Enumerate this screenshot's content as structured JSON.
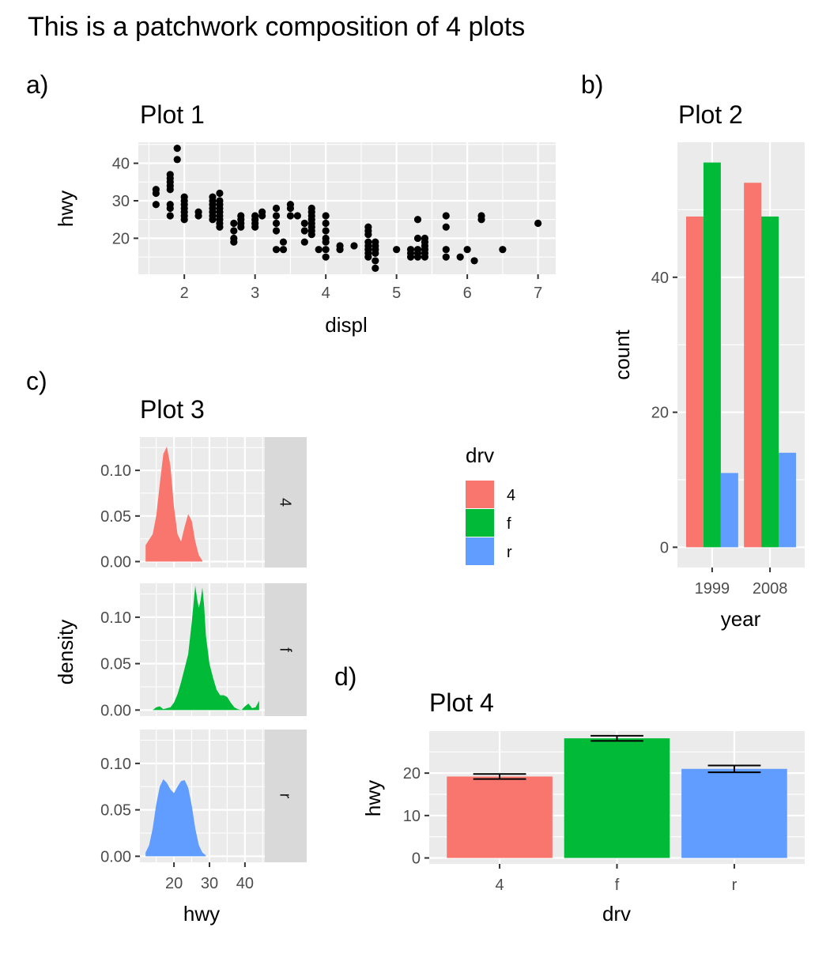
{
  "title": "This is a patchwork composition of 4 plots",
  "colors": {
    "4": "#F8766D",
    "f": "#00BA38",
    "r": "#619CFF",
    "panel_bg": "#EBEBEB",
    "strip_bg": "#D9D9D9"
  },
  "legend": {
    "title": "drv",
    "items": [
      "4",
      "f",
      "r"
    ]
  },
  "chart_data": [
    {
      "tag": "a)",
      "title": "Plot 1",
      "type": "scatter",
      "xlabel": "displ",
      "ylabel": "hwy",
      "xlim": [
        1.35,
        7.25
      ],
      "ylim": [
        10.4,
        45.6
      ],
      "xticks": [
        2,
        3,
        4,
        5,
        6,
        7
      ],
      "yticks": [
        20,
        30,
        40
      ],
      "points": [
        [
          1.6,
          33
        ],
        [
          1.6,
          32
        ],
        [
          1.6,
          29
        ],
        [
          1.8,
          29
        ],
        [
          1.8,
          26
        ],
        [
          1.8,
          28
        ],
        [
          1.8,
          33
        ],
        [
          1.8,
          34
        ],
        [
          1.8,
          36
        ],
        [
          1.8,
          37
        ],
        [
          1.8,
          35
        ],
        [
          1.9,
          44
        ],
        [
          1.9,
          41
        ],
        [
          2.0,
          31
        ],
        [
          2.0,
          30
        ],
        [
          2.0,
          29
        ],
        [
          2.0,
          28
        ],
        [
          2.0,
          27
        ],
        [
          2.0,
          26
        ],
        [
          2.0,
          25
        ],
        [
          2.2,
          27
        ],
        [
          2.2,
          26
        ],
        [
          2.4,
          31
        ],
        [
          2.4,
          30
        ],
        [
          2.4,
          29
        ],
        [
          2.4,
          28
        ],
        [
          2.4,
          27
        ],
        [
          2.4,
          26
        ],
        [
          2.4,
          25
        ],
        [
          2.5,
          32
        ],
        [
          2.5,
          30
        ],
        [
          2.5,
          29
        ],
        [
          2.5,
          28
        ],
        [
          2.5,
          27
        ],
        [
          2.5,
          26
        ],
        [
          2.5,
          25
        ],
        [
          2.5,
          24
        ],
        [
          2.5,
          23
        ],
        [
          2.7,
          24
        ],
        [
          2.7,
          22
        ],
        [
          2.7,
          20
        ],
        [
          2.7,
          19
        ],
        [
          2.8,
          26
        ],
        [
          2.8,
          25
        ],
        [
          2.8,
          24
        ],
        [
          2.8,
          23
        ],
        [
          3.0,
          26
        ],
        [
          3.0,
          25
        ],
        [
          3.0,
          24
        ],
        [
          3.0,
          23
        ],
        [
          3.1,
          27
        ],
        [
          3.1,
          26
        ],
        [
          3.3,
          28
        ],
        [
          3.3,
          26
        ],
        [
          3.3,
          24
        ],
        [
          3.3,
          22
        ],
        [
          3.3,
          17
        ],
        [
          3.4,
          19
        ],
        [
          3.4,
          17
        ],
        [
          3.5,
          29
        ],
        [
          3.5,
          28
        ],
        [
          3.5,
          26
        ],
        [
          3.6,
          26
        ],
        [
          3.7,
          24
        ],
        [
          3.7,
          22
        ],
        [
          3.7,
          19
        ],
        [
          3.8,
          28
        ],
        [
          3.8,
          27
        ],
        [
          3.8,
          26
        ],
        [
          3.8,
          25
        ],
        [
          3.8,
          24
        ],
        [
          3.8,
          23
        ],
        [
          3.8,
          22
        ],
        [
          3.8,
          21
        ],
        [
          3.9,
          17
        ],
        [
          4.0,
          26
        ],
        [
          4.0,
          24
        ],
        [
          4.0,
          22
        ],
        [
          4.0,
          20
        ],
        [
          4.0,
          19
        ],
        [
          4.0,
          17
        ],
        [
          4.0,
          15
        ],
        [
          4.2,
          18
        ],
        [
          4.2,
          17
        ],
        [
          4.4,
          18
        ],
        [
          4.6,
          23
        ],
        [
          4.6,
          22
        ],
        [
          4.6,
          21
        ],
        [
          4.6,
          19
        ],
        [
          4.6,
          18
        ],
        [
          4.6,
          17
        ],
        [
          4.6,
          16
        ],
        [
          4.6,
          15
        ],
        [
          4.7,
          19
        ],
        [
          4.7,
          18
        ],
        [
          4.7,
          17
        ],
        [
          4.7,
          16
        ],
        [
          4.7,
          14
        ],
        [
          4.7,
          12
        ],
        [
          5.0,
          17
        ],
        [
          5.2,
          17
        ],
        [
          5.2,
          16
        ],
        [
          5.2,
          15
        ],
        [
          5.3,
          25
        ],
        [
          5.3,
          20
        ],
        [
          5.3,
          17
        ],
        [
          5.3,
          16
        ],
        [
          5.3,
          15
        ],
        [
          5.4,
          20
        ],
        [
          5.4,
          19
        ],
        [
          5.4,
          18
        ],
        [
          5.4,
          17
        ],
        [
          5.4,
          16
        ],
        [
          5.4,
          15
        ],
        [
          5.7,
          26
        ],
        [
          5.7,
          23
        ],
        [
          5.7,
          17
        ],
        [
          5.7,
          15
        ],
        [
          5.9,
          15
        ],
        [
          6.0,
          17
        ],
        [
          6.1,
          14
        ],
        [
          6.2,
          26
        ],
        [
          6.2,
          25
        ],
        [
          6.5,
          17
        ],
        [
          7.0,
          24
        ]
      ]
    },
    {
      "tag": "b)",
      "title": "Plot 2",
      "type": "bar",
      "xlabel": "year",
      "ylabel": "count",
      "categories": [
        "1999",
        "2008"
      ],
      "ylim": [
        -3.0,
        60.0
      ],
      "yticks": [
        0,
        20,
        40
      ],
      "series": [
        {
          "name": "4",
          "values": [
            49,
            54
          ]
        },
        {
          "name": "f",
          "values": [
            57,
            49
          ]
        },
        {
          "name": "r",
          "values": [
            11,
            14
          ]
        }
      ]
    },
    {
      "tag": "c)",
      "title": "Plot 3",
      "type": "area",
      "xlabel": "hwy",
      "ylabel": "density",
      "xlim": [
        10.4,
        45.6
      ],
      "ylim": [
        -0.0065,
        0.1365
      ],
      "xticks": [
        20,
        30,
        40
      ],
      "yticks": [
        0.0,
        0.05,
        0.1
      ],
      "ytick_labels": [
        "0.00",
        "0.05",
        "0.10"
      ],
      "facets": [
        {
          "strip": "4",
          "x": [
            12,
            13,
            14,
            15,
            16,
            17,
            18,
            19,
            20,
            21,
            22,
            23,
            24,
            25,
            26,
            27,
            28
          ],
          "y": [
            0.018,
            0.024,
            0.03,
            0.05,
            0.085,
            0.118,
            0.126,
            0.105,
            0.06,
            0.03,
            0.022,
            0.038,
            0.052,
            0.045,
            0.022,
            0.007,
            0.001
          ]
        },
        {
          "strip": "f",
          "x": [
            14,
            15,
            16,
            17,
            18,
            19,
            20,
            21,
            22,
            23,
            24,
            25,
            26,
            26.5,
            27,
            27.5,
            28,
            28.5,
            29,
            30,
            31,
            32,
            33,
            34,
            35,
            36,
            37,
            38,
            39,
            40,
            41,
            42,
            43,
            44
          ],
          "y": [
            0.0,
            0.003,
            0.004,
            0.001,
            0.002,
            0.003,
            0.008,
            0.017,
            0.03,
            0.045,
            0.06,
            0.094,
            0.134,
            0.12,
            0.11,
            0.118,
            0.132,
            0.112,
            0.08,
            0.05,
            0.035,
            0.022,
            0.016,
            0.016,
            0.014,
            0.008,
            0.003,
            0.001,
            0.0,
            0.004,
            0.007,
            0.002,
            0.003,
            0.01
          ]
        },
        {
          "strip": "r",
          "x": [
            12,
            13,
            14,
            15,
            16,
            17,
            18,
            19,
            20,
            21,
            22,
            23,
            24,
            25,
            26,
            27,
            28,
            29
          ],
          "y": [
            0.004,
            0.012,
            0.03,
            0.056,
            0.075,
            0.083,
            0.079,
            0.072,
            0.068,
            0.075,
            0.081,
            0.082,
            0.074,
            0.055,
            0.03,
            0.012,
            0.004,
            0.001
          ]
        }
      ]
    },
    {
      "tag": "d)",
      "title": "Plot 4",
      "type": "bar",
      "xlabel": "drv",
      "ylabel": "hwy",
      "categories": [
        "4",
        "f",
        "r"
      ],
      "values": [
        19.2,
        28.2,
        21.0
      ],
      "error": [
        [
          18.6,
          19.8
        ],
        [
          27.6,
          28.8
        ],
        [
          20.2,
          21.8
        ]
      ],
      "ylim": [
        -1.4,
        29.9
      ],
      "yticks": [
        0,
        10,
        20
      ]
    }
  ]
}
